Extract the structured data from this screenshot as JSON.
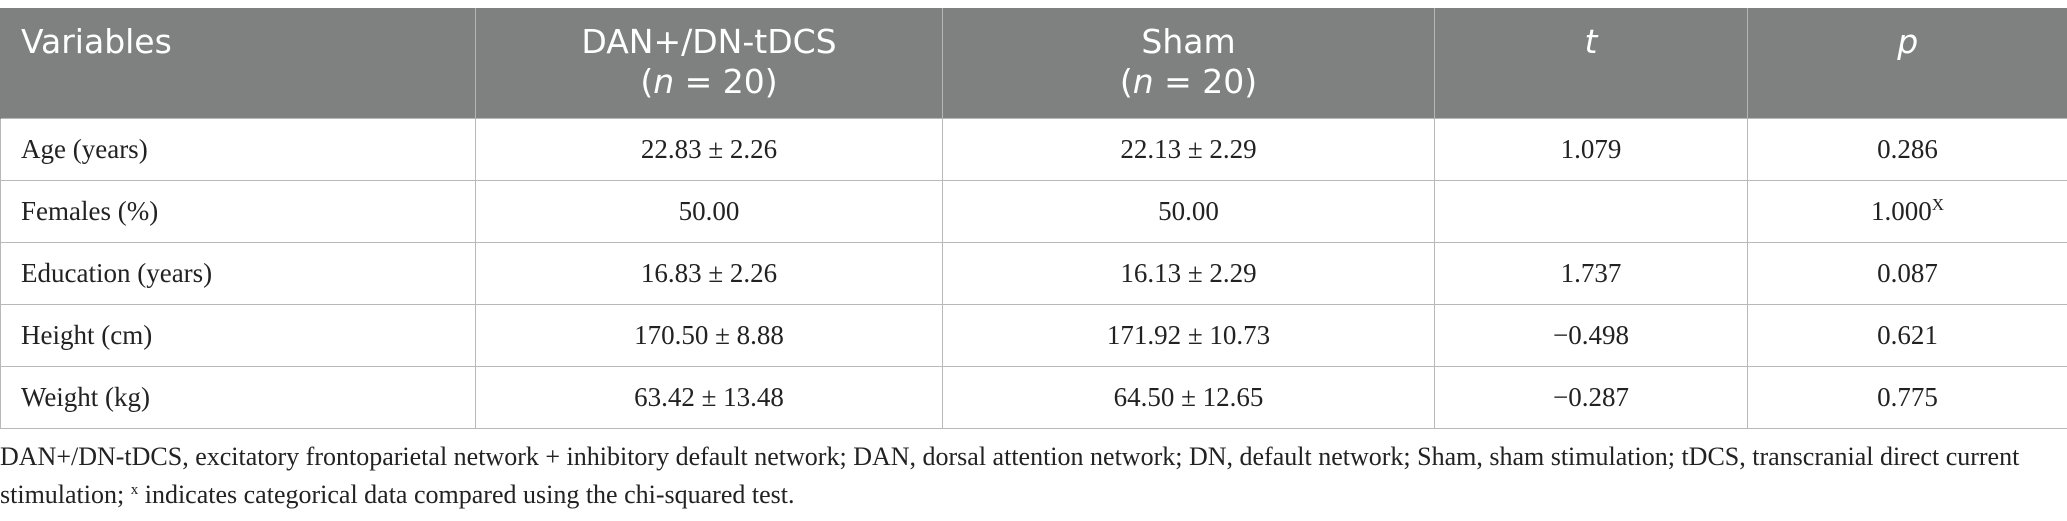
{
  "header": {
    "variables": "Variables",
    "group1_name": "DAN+/DN-tDCS",
    "group1_n": "(n = 20)",
    "group2_name": "Sham",
    "group2_n": "(n = 20)",
    "t": "t",
    "p": "p"
  },
  "rows": [
    {
      "variable": "Age (years)",
      "dan": "22.83 ± 2.26",
      "sham": "22.13 ± 2.29",
      "t": "1.079",
      "p": "0.286",
      "p_mark": ""
    },
    {
      "variable": "Females (%)",
      "dan": "50.00",
      "sham": "50.00",
      "t": "",
      "p": "1.000",
      "p_mark": "X"
    },
    {
      "variable": "Education (years)",
      "dan": "16.83 ± 2.26",
      "sham": "16.13 ± 2.29",
      "t": "1.737",
      "p": "0.087",
      "p_mark": ""
    },
    {
      "variable": "Height (cm)",
      "dan": "170.50 ± 8.88",
      "sham": "171.92 ± 10.73",
      "t": "−0.498",
      "p": "0.621",
      "p_mark": ""
    },
    {
      "variable": "Weight (kg)",
      "dan": "63.42 ± 13.48",
      "sham": "64.50 ± 12.65",
      "t": "−0.287",
      "p": "0.775",
      "p_mark": ""
    }
  ],
  "footnote": {
    "text": "DAN+/DN-tDCS, excitatory frontoparietal network + inhibitory default network; DAN, dorsal attention network; DN, default network; Sham, sham stimulation; tDCS, transcranial direct current stimulation;",
    "mark": "x",
    "tail": "indicates categorical data compared using the chi-squared test."
  }
}
